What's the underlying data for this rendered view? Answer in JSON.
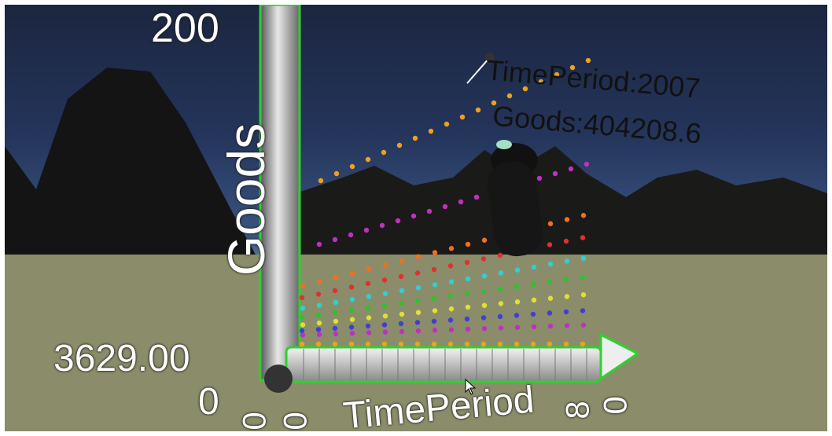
{
  "y_axis": {
    "label": "Goods",
    "max_tick": "200",
    "min_tick": "3629.00"
  },
  "x_axis": {
    "label": "TimePeriod",
    "min_tick": "0",
    "end_ticks": [
      "8",
      "0"
    ],
    "start_ticks": [
      "0",
      "0"
    ]
  },
  "tooltip": {
    "time_period": "TimePeriod:2007",
    "goods": "Goods:404208.6"
  },
  "colors": {
    "accent": "#2fd02f",
    "sky_top": "#1b2640",
    "ground": "#8b8d6c"
  },
  "icons": [
    "vr-controller-icon",
    "mouse-pointer-icon"
  ]
}
